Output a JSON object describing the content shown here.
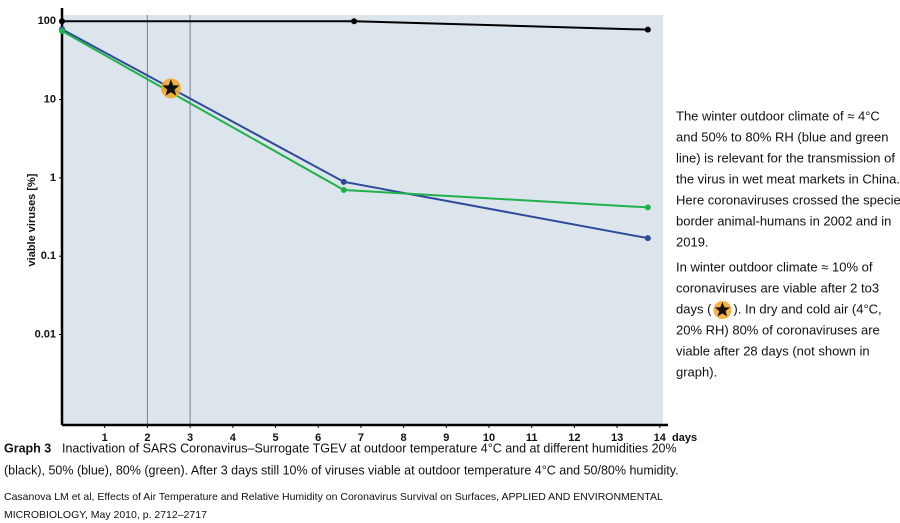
{
  "chart_data": {
    "type": "line",
    "y_label": "viable viruses [%]",
    "x_label": "days",
    "log_y": true,
    "xlim": [
      0,
      14
    ],
    "ylim": [
      0.0007,
      120
    ],
    "xticks": [
      1,
      2,
      3,
      4,
      5,
      6,
      7,
      8,
      9,
      10,
      11,
      12,
      13,
      14
    ],
    "yticks": [
      100,
      10,
      1,
      0.1,
      0.01
    ],
    "vlines": [
      2,
      3
    ],
    "background": "#dde5ec",
    "series": [
      {
        "color": "#000000",
        "x": [
          0,
          6.84,
          13.72
        ],
        "values": [
          100,
          100,
          78
        ]
      },
      {
        "color": "#2e4a9a",
        "x": [
          0,
          6.6,
          13.72
        ],
        "values": [
          79,
          0.89,
          0.17
        ]
      },
      {
        "color": "#1fb24a",
        "x": [
          0,
          6.6,
          13.72
        ],
        "values": [
          75,
          0.7,
          0.42
        ]
      }
    ],
    "star": {
      "x": 2.55,
      "y": 13.9,
      "color": "#f5a623"
    },
    "notes": {
      "paragraph1": [
        "The winter outdoor climate of ≈ 4°C",
        "and 50% to 80% RH (blue and green",
        "line) is relevant for the transmission of",
        "the virus in wet meat markets in China.",
        "Here coronaviruses crossed the species",
        "border animal-humans in 2002 and in",
        "2019."
      ],
      "paragraph2": [
        "In winter outdoor climate ≈ 10% of",
        "coronaviruses are viable after 2 to3",
        [
          "days (",
          "). In dry and cold air (4°C,"
        ],
        "20% RH) 80% of coronaviruses are",
        "viable after 28 days (not shown in",
        "graph)."
      ]
    },
    "caption": {
      "label": "Graph 3",
      "lines": [
        "Inactivation of SARS Coronavirus–Surrogate TGEV at outdoor temperature 4°C and at different humidities 20%",
        "(black), 50% (blue), 80% (green). After 3 days still 10% of viruses viable at outdoor temperature 4°C and 50/80% humidity."
      ]
    },
    "citation": [
      "Casanova LM et al, Effects of Air Temperature and Relative Humidity on Coronavirus Survival on Surfaces, APPLIED AND ENVIRONMENTAL",
      "MICROBIOLOGY, May 2010, p. 2712–2717"
    ]
  }
}
